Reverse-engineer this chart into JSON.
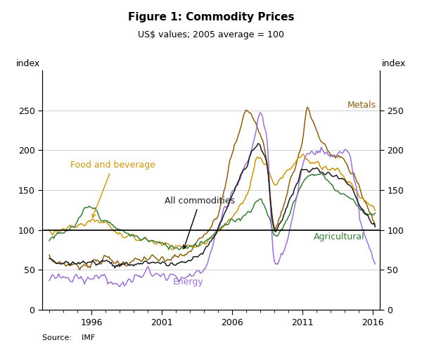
{
  "title": "Figure 1: Commodity Prices",
  "subtitle": "US$ values; 2005 average = 100",
  "ylabel_left": "index",
  "ylabel_right": "index",
  "source": "Source:    IMF",
  "ylim": [
    0,
    300
  ],
  "yticks": [
    0,
    50,
    100,
    150,
    200,
    250
  ],
  "xstart": 1992.5,
  "xend": 2016.5,
  "xticks": [
    1996,
    2001,
    2006,
    2011,
    2016
  ],
  "hline_y": 100,
  "colors": {
    "metals": "#8B6010",
    "food_beverage": "#C8960C",
    "agricultural": "#3A7A3A",
    "energy": "#9B72CF",
    "all_commodities": "#1A1A1A"
  },
  "line_width": 1.1
}
